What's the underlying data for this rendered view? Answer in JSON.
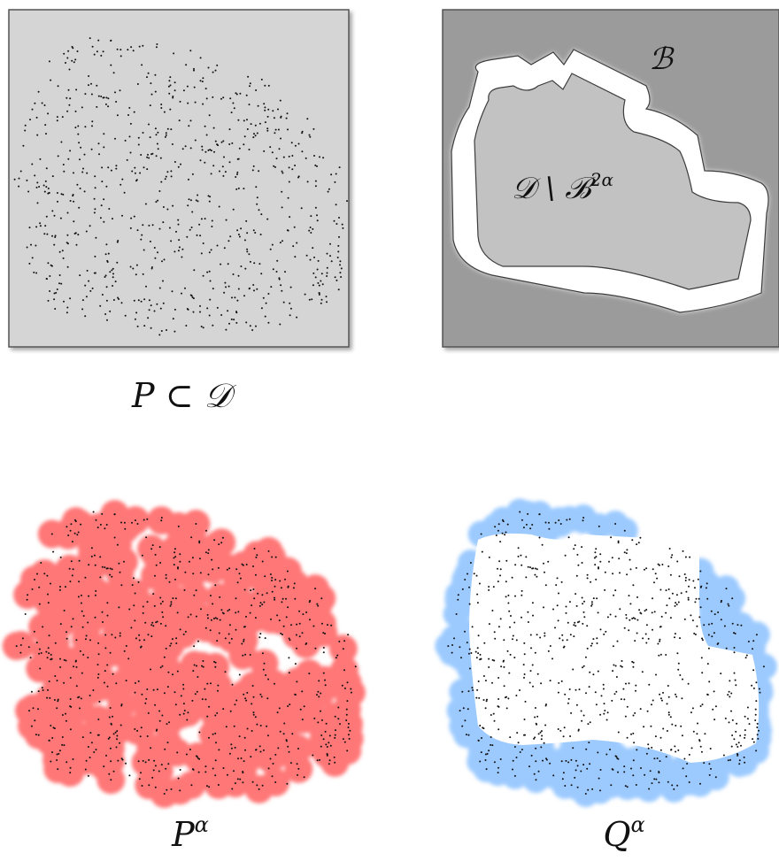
{
  "panels": {
    "points": {
      "caption_main": "P ⊂ 𝒟"
    },
    "domain": {
      "boundary_label": "ℬ",
      "interior_label_main": "𝒟 \\ ℬ",
      "interior_label_sup": "2α"
    },
    "p_alpha": {
      "caption_main": "P",
      "caption_sup": "α"
    },
    "q_alpha": {
      "caption_main": "Q",
      "caption_sup": "α"
    }
  },
  "colors": {
    "domain_fill": "#d5d5d5",
    "outer_fill": "#9b9b9b",
    "boundary_band": "#ffffff",
    "inner_region": "#c2c2c2",
    "p_alpha_fill": "#ff7777",
    "q_alpha_fill": "#9ccaff",
    "point_color": "#111111"
  }
}
